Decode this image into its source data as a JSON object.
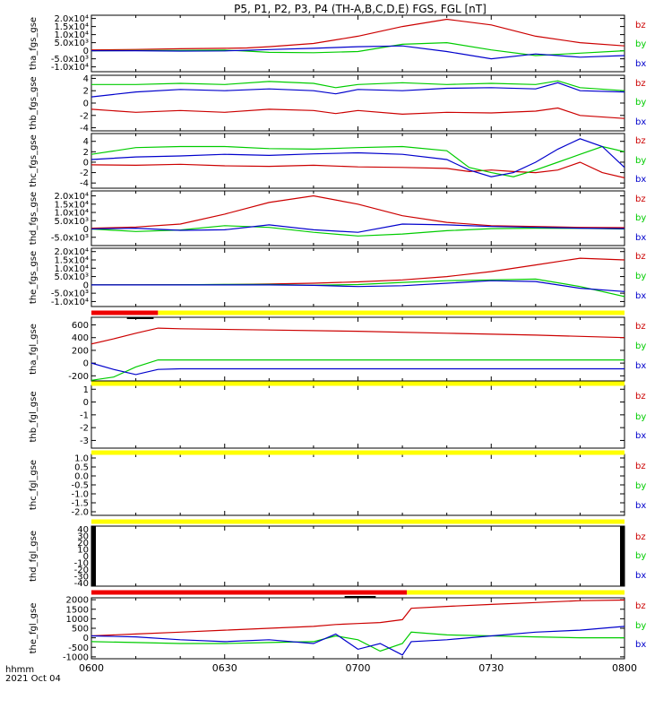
{
  "title": "P5, P1, P2, P3, P4 (TH-A,B,C,D,E) FGS, FGL [nT]",
  "colors": {
    "bx": "#0000cc",
    "by": "#00cc00",
    "bz": "#cc0000",
    "bar_red": "#ee0000",
    "bar_yellow": "#ffff00",
    "bar_black": "#000000"
  },
  "footer": {
    "hhmm": "hhmm",
    "date": "2021 Oct 04"
  },
  "x_ticks": [
    "0600",
    "0630",
    "0700",
    "0730",
    "0800"
  ],
  "chart_data": [
    {
      "type": "line",
      "ylabel": "tha_fgs_gse",
      "ylim": [
        -13000,
        22000
      ],
      "yticks": [
        "2.0x10⁴",
        "1.5x10⁴",
        "1.0x10⁴",
        "5.0x10³",
        "0",
        "-5.0x10³",
        "-1.0x10⁴"
      ],
      "ytick_values": [
        20000,
        15000,
        10000,
        5000,
        0,
        -5000,
        -10000
      ],
      "x": [
        0,
        10,
        20,
        30,
        35,
        40,
        50,
        60,
        70,
        80,
        90,
        100,
        110,
        120
      ],
      "series": [
        {
          "name": "bz",
          "values": [
            500,
            800,
            1200,
            1500,
            1700,
            2500,
            4500,
            9000,
            15000,
            19500,
            16000,
            9000,
            5000,
            3000
          ]
        },
        {
          "name": "by",
          "values": [
            0,
            100,
            200,
            400,
            -200,
            -1000,
            -1200,
            -500,
            4000,
            5000,
            500,
            -3000,
            -1500,
            0
          ]
        },
        {
          "name": "bx",
          "values": [
            0,
            0,
            -200,
            -100,
            300,
            700,
            1500,
            2500,
            3000,
            -500,
            -5000,
            -2000,
            -4000,
            -3000
          ]
        }
      ]
    },
    {
      "type": "line",
      "ylabel": "thb_fgs_gse",
      "ylim": [
        -4.5,
        4.5
      ],
      "yticks": [
        "4",
        "2",
        "0",
        "-2",
        "-4"
      ],
      "ytick_values": [
        4,
        2,
        0,
        -2,
        -4
      ],
      "x": [
        0,
        10,
        20,
        30,
        40,
        50,
        55,
        60,
        70,
        80,
        90,
        100,
        105,
        110,
        120
      ],
      "series": [
        {
          "name": "bz",
          "values": [
            -1,
            -1.5,
            -1.2,
            -1.5,
            -1,
            -1.2,
            -1.7,
            -1.2,
            -1.8,
            -1.5,
            -1.6,
            -1.3,
            -0.8,
            -2,
            -2.5
          ]
        },
        {
          "name": "by",
          "values": [
            3,
            3,
            3.2,
            3,
            3.5,
            3.2,
            2.5,
            3,
            3.3,
            3,
            3.2,
            3,
            3.6,
            2.5,
            2
          ]
        },
        {
          "name": "bx",
          "values": [
            1,
            1.8,
            2.2,
            2,
            2.3,
            2,
            1.5,
            2.2,
            2,
            2.4,
            2.5,
            2.3,
            3.3,
            2,
            1.8
          ]
        }
      ]
    },
    {
      "type": "line",
      "ylabel": "thc_fgs_gse",
      "ylim": [
        -5,
        5.5
      ],
      "yticks": [
        "4",
        "2",
        "0",
        "-2",
        "-4"
      ],
      "ytick_values": [
        4,
        2,
        0,
        -2,
        -4
      ],
      "x": [
        0,
        10,
        20,
        30,
        40,
        50,
        60,
        70,
        80,
        85,
        90,
        95,
        100,
        105,
        110,
        115,
        120
      ],
      "series": [
        {
          "name": "bz",
          "values": [
            -0.5,
            -0.6,
            -0.4,
            -0.7,
            -0.8,
            -0.6,
            -0.9,
            -1,
            -1.2,
            -1.8,
            -1.5,
            -1.8,
            -2,
            -1.5,
            0,
            -2,
            -3
          ]
        },
        {
          "name": "by",
          "values": [
            1.5,
            2.8,
            3,
            3,
            2.6,
            2.5,
            2.8,
            3,
            2.2,
            -1,
            -2,
            -2.8,
            -1.5,
            0,
            1.5,
            3,
            2
          ]
        },
        {
          "name": "bx",
          "values": [
            0.5,
            1,
            1.2,
            1.5,
            1.3,
            1.6,
            1.8,
            1.5,
            0.5,
            -1.5,
            -2.8,
            -2,
            0,
            2.5,
            4.5,
            3,
            -1
          ]
        }
      ]
    },
    {
      "type": "line",
      "ylabel": "thd_fgs_gse",
      "ylim": [
        -10000,
        23000
      ],
      "yticks": [
        "2.0x10⁴",
        "1.5x10⁴",
        "1.0x10⁴",
        "5.0x10³",
        "0",
        "-5.0x10³"
      ],
      "ytick_values": [
        20000,
        15000,
        10000,
        5000,
        0,
        -5000
      ],
      "x": [
        0,
        10,
        20,
        30,
        40,
        50,
        60,
        70,
        80,
        90,
        100,
        110,
        120
      ],
      "series": [
        {
          "name": "bz",
          "values": [
            500,
            1200,
            3000,
            9000,
            16000,
            20000,
            15000,
            8000,
            4000,
            2000,
            1500,
            1000,
            800
          ]
        },
        {
          "name": "by",
          "values": [
            0,
            -1500,
            -600,
            2000,
            1000,
            -2000,
            -4200,
            -3000,
            -1000,
            200,
            500,
            400,
            0
          ]
        },
        {
          "name": "bx",
          "values": [
            0,
            500,
            -800,
            -500,
            2500,
            -500,
            -2000,
            3000,
            2500,
            1500,
            1000,
            500,
            200
          ]
        }
      ]
    },
    {
      "type": "line",
      "ylabel": "the_fgs_gse",
      "ylim": [
        -13000,
        22000
      ],
      "yticks": [
        "2.0x10⁴",
        "1.5x10⁴",
        "1.0x10⁴",
        "5.0x10³",
        "0",
        "-5.0x10³",
        "-1.0x10⁴"
      ],
      "ytick_values": [
        20000,
        15000,
        10000,
        5000,
        0,
        -5000,
        -10000
      ],
      "x": [
        0,
        10,
        20,
        30,
        40,
        50,
        60,
        70,
        80,
        90,
        100,
        110,
        120
      ],
      "series": [
        {
          "name": "bz",
          "values": [
            0,
            0,
            100,
            200,
            500,
            1000,
            1800,
            3000,
            5000,
            8000,
            12000,
            16000,
            15000
          ]
        },
        {
          "name": "by",
          "values": [
            0,
            0,
            100,
            300,
            300,
            -200,
            200,
            1500,
            2500,
            3000,
            3500,
            -1000,
            -7000
          ]
        },
        {
          "name": "bx",
          "values": [
            0,
            0,
            0,
            0,
            0,
            -300,
            -1000,
            -500,
            1000,
            2500,
            2000,
            -2000,
            -4000
          ]
        }
      ]
    },
    {
      "type": "line",
      "ylabel": "tha_fgl_gse",
      "ylim": [
        -280,
        720
      ],
      "yticks": [
        "600",
        "400",
        "200",
        "0",
        "-200"
      ],
      "ytick_values": [
        600,
        400,
        200,
        0,
        -200
      ],
      "x": [
        0,
        5,
        10,
        15,
        20,
        40,
        60,
        80,
        100,
        120
      ],
      "series": [
        {
          "name": "bz",
          "values": [
            300,
            380,
            470,
            550,
            540,
            520,
            500,
            470,
            440,
            400
          ]
        },
        {
          "name": "by",
          "values": [
            -270,
            -220,
            -60,
            50,
            50,
            50,
            50,
            50,
            50,
            50
          ]
        },
        {
          "name": "bx",
          "values": [
            0,
            -100,
            -180,
            -100,
            -90,
            -90,
            -90,
            -90,
            -90,
            -90
          ]
        }
      ]
    },
    {
      "type": "line",
      "ylabel": "thb_fgl_gse",
      "ylim": [
        -3.6,
        1.3
      ],
      "yticks": [
        "1",
        "0",
        "-1",
        "-2",
        "-3"
      ],
      "ytick_values": [
        1,
        0,
        -1,
        -2,
        -3
      ],
      "x": [],
      "series": []
    },
    {
      "type": "line",
      "ylabel": "thc_fgl_gse",
      "ylim": [
        -2.2,
        1.2
      ],
      "yticks": [
        "1.0",
        "0.5",
        "0.0",
        "-0.5",
        "-1.0",
        "-1.5",
        "-2.0"
      ],
      "ytick_values": [
        1,
        0.5,
        0,
        -0.5,
        -1,
        -1.5,
        -2
      ],
      "x": [],
      "series": []
    },
    {
      "type": "line",
      "ylabel": "thd_fgl_gse",
      "ylim": [
        -45,
        45
      ],
      "yticks": [
        "40",
        "30",
        "20",
        "10",
        "0",
        "-10",
        "-20",
        "-30",
        "-40"
      ],
      "ytick_values": [
        40,
        30,
        20,
        10,
        0,
        -10,
        -20,
        -30,
        -40
      ],
      "x": [],
      "series": []
    },
    {
      "type": "line",
      "ylabel": "the_fgl_gse",
      "ylim": [
        -1100,
        2100
      ],
      "yticks": [
        "2000",
        "1500",
        "1000",
        "500",
        "0",
        "-500",
        "-1000"
      ],
      "ytick_values": [
        2000,
        1500,
        1000,
        500,
        0,
        -500,
        -1000
      ],
      "x": [
        0,
        10,
        20,
        30,
        40,
        50,
        55,
        60,
        65,
        70,
        72,
        80,
        90,
        100,
        110,
        120
      ],
      "series": [
        {
          "name": "bz",
          "values": [
            100,
            200,
            300,
            400,
            500,
            600,
            700,
            750,
            800,
            950,
            1550,
            1650,
            1750,
            1850,
            1950,
            1980
          ]
        },
        {
          "name": "by",
          "values": [
            -200,
            -250,
            -300,
            -300,
            -250,
            -200,
            100,
            -100,
            -700,
            -300,
            300,
            150,
            100,
            50,
            0,
            0
          ]
        },
        {
          "name": "bx",
          "values": [
            100,
            50,
            -100,
            -200,
            -100,
            -300,
            200,
            -600,
            -300,
            -900,
            -200,
            -100,
            100,
            300,
            400,
            600
          ]
        }
      ]
    }
  ]
}
